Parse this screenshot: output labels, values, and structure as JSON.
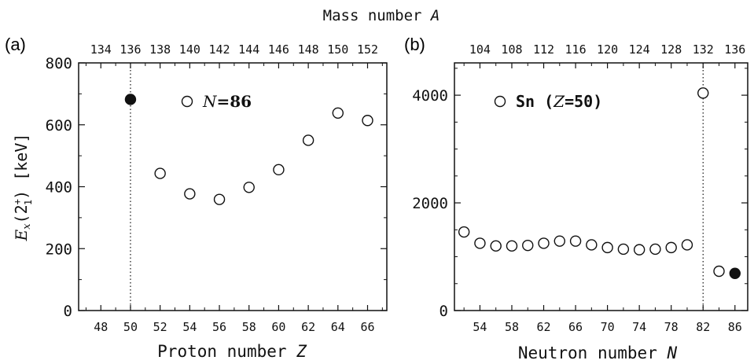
{
  "figure": {
    "top_title": "Mass number",
    "top_title_var": "A"
  },
  "chart_data": [
    {
      "panel_label": "(a)",
      "type": "scatter",
      "xlabel": "Proton number",
      "xlabel_var": "Z",
      "ylabel": "E_x(2_1^+) [keV]",
      "ylabel_parts": {
        "E": "E",
        "x": "x",
        "paren_open": "(2",
        "sup": "+",
        "sub": "1",
        "paren_close": ")",
        "unit": " [keV]"
      },
      "top_axis_label": "Mass number A",
      "xlim": [
        46.5,
        67.3
      ],
      "ylim": [
        0,
        800
      ],
      "x_ticks": [
        48,
        50,
        52,
        54,
        56,
        58,
        60,
        62,
        64,
        66
      ],
      "y_ticks": [
        0,
        200,
        400,
        600,
        800
      ],
      "top_ticks": [
        {
          "x": 48,
          "label": "134"
        },
        {
          "x": 50,
          "label": "136"
        },
        {
          "x": 52,
          "label": "138"
        },
        {
          "x": 54,
          "label": "140"
        },
        {
          "x": 56,
          "label": "142"
        },
        {
          "x": 58,
          "label": "144"
        },
        {
          "x": 60,
          "label": "146"
        },
        {
          "x": 62,
          "label": "148"
        },
        {
          "x": 64,
          "label": "150"
        },
        {
          "x": 66,
          "label": "152"
        }
      ],
      "vline": 50,
      "legend": {
        "label": "N=86",
        "var": "N",
        "rest": "=86",
        "position": "top-center"
      },
      "series": [
        {
          "name": "N=86",
          "marker": "open-circle",
          "points": [
            [
              52,
              443
            ],
            [
              54,
              377
            ],
            [
              56,
              359
            ],
            [
              58,
              398
            ],
            [
              60,
              455
            ],
            [
              62,
              550
            ],
            [
              64,
              638
            ],
            [
              66,
              614
            ]
          ]
        },
        {
          "marker": "filled-circle",
          "points": [
            [
              50,
              682
            ]
          ]
        }
      ]
    },
    {
      "panel_label": "(b)",
      "type": "scatter",
      "xlabel": "Neutron number",
      "xlabel_var": "N",
      "xlim": [
        50.8,
        87.6
      ],
      "ylim": [
        0,
        4600
      ],
      "x_ticks": [
        54,
        58,
        62,
        66,
        70,
        74,
        78,
        82,
        86
      ],
      "y_ticks": [
        0,
        2000,
        4000
      ],
      "top_ticks": [
        {
          "x": 54,
          "label": "104"
        },
        {
          "x": 58,
          "label": "108"
        },
        {
          "x": 62,
          "label": "112"
        },
        {
          "x": 66,
          "label": "116"
        },
        {
          "x": 70,
          "label": "120"
        },
        {
          "x": 74,
          "label": "124"
        },
        {
          "x": 78,
          "label": "128"
        },
        {
          "x": 82,
          "label": "132"
        },
        {
          "x": 86,
          "label": "136"
        }
      ],
      "vline": 82,
      "legend": {
        "label": "Sn (Z=50)",
        "pre": "Sn (",
        "var": "Z",
        "post": "=50)",
        "position": "top-left"
      },
      "series": [
        {
          "name": "Sn (Z=50)",
          "marker": "open-circle",
          "points": [
            [
              52,
              1460
            ],
            [
              54,
              1250
            ],
            [
              56,
              1200
            ],
            [
              58,
              1200
            ],
            [
              60,
              1210
            ],
            [
              62,
              1250
            ],
            [
              64,
              1290
            ],
            [
              66,
              1290
            ],
            [
              68,
              1220
            ],
            [
              70,
              1170
            ],
            [
              72,
              1140
            ],
            [
              74,
              1130
            ],
            [
              76,
              1140
            ],
            [
              78,
              1170
            ],
            [
              80,
              1220
            ],
            [
              82,
              4040
            ],
            [
              84,
              730
            ]
          ]
        },
        {
          "marker": "filled-circle",
          "points": [
            [
              86,
              690
            ]
          ]
        }
      ]
    }
  ]
}
